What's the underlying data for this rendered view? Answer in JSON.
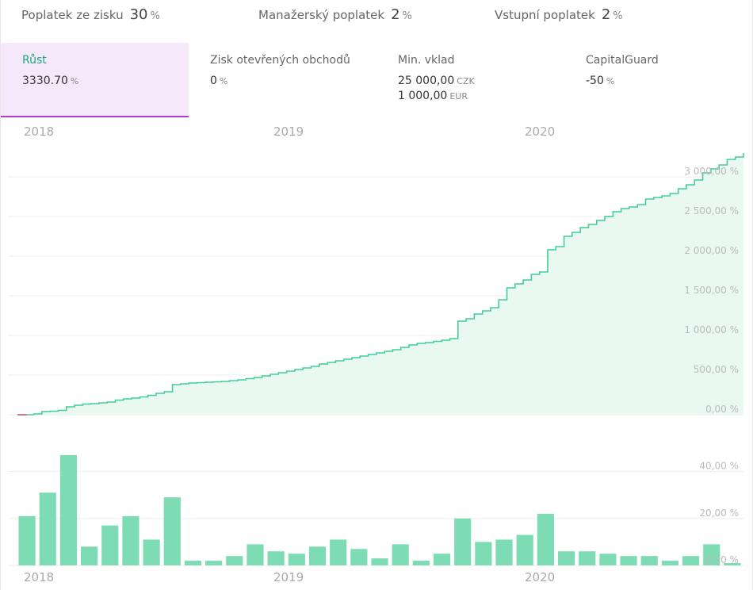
{
  "fees": [
    {
      "label": "Poplatek ze zisku",
      "value": "30",
      "unit": "%"
    },
    {
      "label": "Manažerský poplatek",
      "value": "2",
      "unit": "%"
    },
    {
      "label": "Vstupní poplatek",
      "value": "2",
      "unit": "%"
    }
  ],
  "stats": [
    {
      "label": "Růst",
      "value": "3330.70",
      "unit": "%"
    },
    {
      "label": "Zisk otevřených obchodů",
      "value": "0",
      "unit": "%"
    },
    {
      "label": "Min. vklad",
      "value": "25 000,00",
      "unit": "CZK",
      "value2": "1 000,00",
      "unit2": "EUR"
    },
    {
      "label": "CapitalGuard",
      "value": "-50",
      "unit": "%"
    }
  ],
  "colors": {
    "line": "#3fcf97",
    "area": "#eaf8f2",
    "bar": "#7ddcb4",
    "active_tab_bg": "#f4e8fa",
    "active_tab_border": "#b03bd9",
    "active_label": "#1aa67c"
  },
  "chart_data": [
    {
      "type": "area",
      "x_year_labels": [
        "2018",
        "2019",
        "2020"
      ],
      "y_tick_labels": [
        "0,00 %",
        "500,00 %",
        "1 000,00 %",
        "1 500,00 %",
        "2 000,00 %",
        "2 500,00 %",
        "3 000,00 %"
      ],
      "ylim": [
        0,
        3300
      ],
      "grid": true,
      "series": [
        {
          "values": [
            0,
            0,
            10,
            40,
            45,
            55,
            100,
            120,
            135,
            140,
            150,
            160,
            185,
            200,
            210,
            225,
            245,
            270,
            290,
            380,
            390,
            400,
            405,
            410,
            415,
            420,
            430,
            440,
            455,
            470,
            490,
            510,
            530,
            550,
            570,
            590,
            610,
            640,
            660,
            680,
            700,
            720,
            740,
            760,
            780,
            800,
            820,
            850,
            880,
            900,
            910,
            925,
            940,
            960,
            1180,
            1210,
            1270,
            1310,
            1350,
            1450,
            1600,
            1650,
            1700,
            1770,
            1800,
            2080,
            2120,
            2250,
            2300,
            2360,
            2400,
            2450,
            2500,
            2560,
            2600,
            2620,
            2650,
            2720,
            2740,
            2760,
            2790,
            2850,
            2900,
            2960,
            3050,
            3100,
            3150,
            3220,
            3250,
            3300
          ]
        }
      ]
    },
    {
      "type": "bar",
      "x_year_labels": [
        "2018",
        "2019",
        "2020"
      ],
      "y_tick_labels": [
        "0,00 %",
        "20,00 %",
        "40,00 %"
      ],
      "ylim": [
        0,
        50
      ],
      "grid": true,
      "values": [
        21,
        31,
        47,
        8,
        17,
        21,
        11,
        29,
        2,
        2,
        4,
        9,
        6,
        5,
        8,
        11,
        7,
        3,
        9,
        2,
        5,
        20,
        10,
        11,
        13,
        22,
        6,
        6,
        5,
        4,
        4,
        2,
        4,
        9,
        1
      ]
    }
  ]
}
